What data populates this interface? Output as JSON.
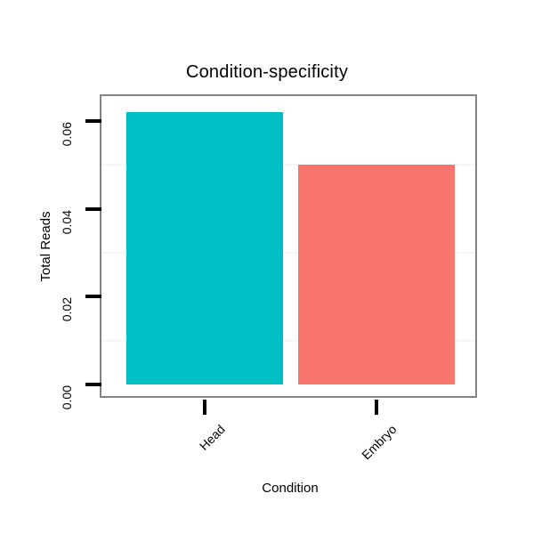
{
  "chart_data": {
    "type": "bar",
    "title": "Condition-specificity",
    "xlabel": "Condition",
    "ylabel": "Total Reads",
    "categories": [
      "Head",
      "Embryo"
    ],
    "values": [
      0.062,
      0.05
    ],
    "bar_colors": [
      "#00BFC4",
      "#F8766D"
    ],
    "ylim": [
      0,
      0.066
    ],
    "yticks": [
      0.0,
      0.02,
      0.04,
      0.06
    ],
    "ytick_labels": [
      "0.00",
      "0.02",
      "0.04",
      "0.06"
    ],
    "minor_gridlines": [
      0.01,
      0.03,
      0.05
    ],
    "grid": "minor-only",
    "legend_position": "none"
  },
  "colors": {
    "panel_border": "#848484",
    "gridline_minor": "#f6f6f6",
    "tick_mark": "#000000",
    "text": "#000000",
    "background": "#ffffff"
  }
}
